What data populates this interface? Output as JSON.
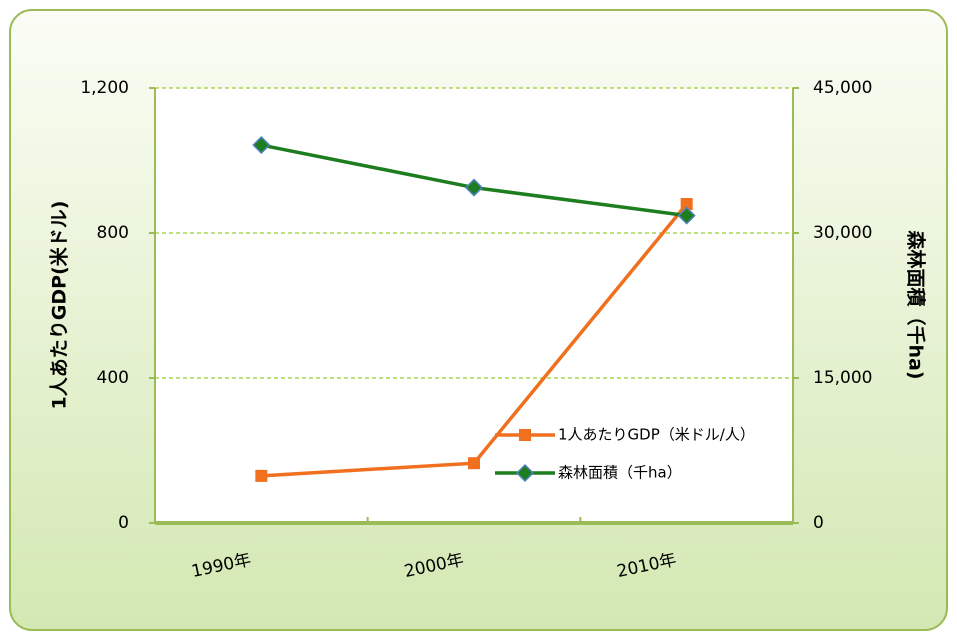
{
  "chart_data": {
    "type": "line",
    "categories": [
      "1990年",
      "2000年",
      "2010年"
    ],
    "series": [
      {
        "name": "1人あたりGDP（米ドル/人）",
        "color": "#f07020",
        "marker": "square",
        "values": [
          130,
          165,
          880
        ]
      },
      {
        "name": "森林面積（千ha）",
        "color": "#1e7d1e",
        "marker": "diamond",
        "axis": "y2",
        "values": [
          39100,
          34700,
          31800
        ]
      }
    ],
    "ylabel": "1人あたりGDP(米ドル)",
    "y2label": "森林面積（千ha)",
    "ylim": [
      0,
      1200
    ],
    "yticks": [
      0,
      400,
      800,
      {
        "value": 1200,
        "label": "1,200"
      }
    ],
    "y2lim": [
      0,
      45000
    ],
    "y2ticks": [
      0,
      {
        "value": 15000,
        "label": "15,000"
      },
      {
        "value": 30000,
        "label": "30,000"
      },
      {
        "value": 45000,
        "label": "45,000"
      }
    ],
    "grid": true,
    "legend": "lower right"
  }
}
